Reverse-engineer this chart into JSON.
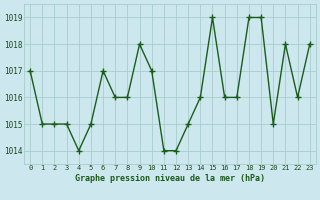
{
  "x": [
    0,
    1,
    2,
    3,
    4,
    5,
    6,
    7,
    8,
    9,
    10,
    11,
    12,
    13,
    14,
    15,
    16,
    17,
    18,
    19,
    20,
    21,
    22,
    23
  ],
  "y": [
    1017,
    1015,
    1015,
    1015,
    1014,
    1015,
    1017,
    1016,
    1016,
    1018,
    1017,
    1014,
    1014,
    1015,
    1016,
    1019,
    1016,
    1016,
    1019,
    1019,
    1015,
    1018,
    1016,
    1018
  ],
  "ylim": [
    1013.5,
    1019.5
  ],
  "yticks": [
    1014,
    1015,
    1016,
    1017,
    1018,
    1019
  ],
  "xlabel": "Graphe pression niveau de la mer (hPa)",
  "line_color": "#1a5c1a",
  "marker_color": "#1a5c1a",
  "bg_color": "#cce8ee",
  "grid_color": "#aacccc",
  "label_color": "#1a5c1a",
  "font_color": "#1a4a1a",
  "marker_size": 4,
  "line_width": 1.0
}
